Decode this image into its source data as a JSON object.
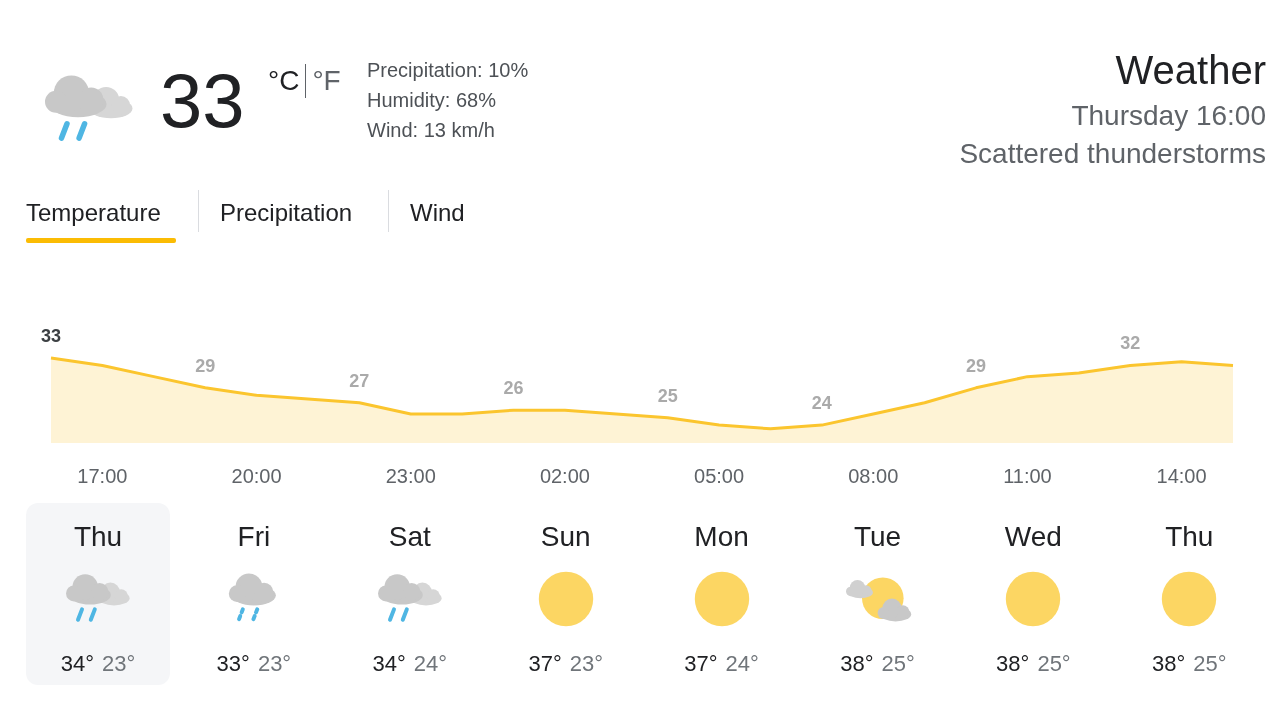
{
  "chart_data": [
    {
      "type": "area",
      "title": "Weather",
      "subtitle": "Thursday 16:00",
      "annotations": [
        "Scattered thunderstorms",
        "33",
        "°C",
        "°F",
        "Precipitation: 10%",
        "Humidity: 68%",
        "Wind: 13 km/h",
        "Temperature",
        "Precipitation",
        "Wind"
      ],
      "categories": [
        null,
        "17:00",
        null,
        null,
        "20:00",
        null,
        null,
        "23:00",
        null,
        null,
        "02:00",
        null,
        null,
        "05:00",
        null,
        null,
        "08:00",
        null,
        null,
        "11:00",
        null,
        null,
        "14:00",
        null
      ],
      "values": [
        33,
        32,
        30.5,
        29,
        28,
        27.5,
        27,
        25.5,
        25.5,
        26,
        26,
        25.5,
        25,
        24,
        23.5,
        24,
        25.5,
        27,
        29,
        30.5,
        31,
        32,
        32.5,
        32
      ],
      "value_labels": [
        "33",
        null,
        null,
        "29",
        null,
        null,
        "27",
        null,
        null,
        "26",
        null,
        null,
        "25",
        null,
        null,
        "24",
        null,
        null,
        "29",
        null,
        null,
        "32",
        null,
        null
      ],
      "color": "#fbc52e",
      "grid": false,
      "legend": false
    },
    {
      "type": "other",
      "categories": [
        "Thu",
        "Fri",
        "Sat",
        "Sun",
        "Mon",
        "Tue",
        "Wed",
        "Thu"
      ],
      "annotations": [
        "34°",
        "23°",
        "33°",
        "23°",
        "34°",
        "24°",
        "37°",
        "23°",
        "37°",
        "24°",
        "38°",
        "25°",
        "38°",
        "25°",
        "38°",
        "25°"
      ]
    }
  ]
}
